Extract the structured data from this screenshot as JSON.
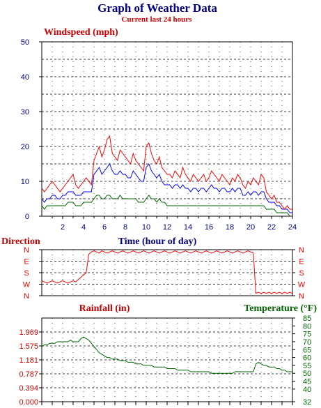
{
  "header": {
    "title": "Graph of Weather Data",
    "subtitle": "Current last 24 hours"
  },
  "colors": {
    "title": "#000080",
    "subtitle": "#cc0000",
    "gust": "#ff0000",
    "average": "#0000ff",
    "low": "#006600",
    "rain_axis": "#cc0000",
    "temperature": "#006600",
    "grid": "#000000",
    "axis_text": "#000080"
  },
  "chart_data": [
    {
      "id": "windspeed",
      "type": "line",
      "title": "Windspeed (mph)",
      "xlabel": "Time (hour of day)",
      "ylabel": "Windspeed (mph)",
      "xlim": [
        0,
        24
      ],
      "ylim": [
        0,
        50
      ],
      "x_ticks": [
        "2",
        "4",
        "6",
        "8",
        "10",
        "12",
        "14",
        "16",
        "18",
        "20",
        "22",
        "24"
      ],
      "y_ticks": [
        "0",
        "10",
        "20",
        "30",
        "40",
        "50"
      ],
      "grid": true,
      "x_step_hours": 0.25,
      "series": [
        {
          "key": "gust",
          "values": [
            8,
            7,
            8,
            9,
            10,
            9,
            8,
            7,
            8,
            9,
            10,
            11,
            12,
            9,
            8,
            9,
            10,
            11,
            10,
            9,
            16,
            18,
            20,
            17,
            19,
            22,
            23,
            18,
            17,
            16,
            19,
            18,
            17,
            16,
            15,
            18,
            16,
            15,
            14,
            13,
            20,
            21,
            18,
            16,
            15,
            17,
            14,
            13,
            12,
            12,
            11,
            13,
            12,
            11,
            14,
            12,
            11,
            10,
            12,
            11,
            10,
            11,
            12,
            10,
            11,
            13,
            12,
            11,
            10,
            12,
            11,
            10,
            9,
            11,
            10,
            12,
            11,
            9,
            8,
            10,
            9,
            11,
            10,
            9,
            12,
            11,
            7,
            6,
            5,
            6,
            4,
            4,
            3,
            2,
            3,
            2,
            2
          ]
        },
        {
          "key": "average",
          "values": [
            5,
            4,
            5,
            5,
            6,
            6,
            5,
            5,
            6,
            6,
            7,
            7,
            7,
            6,
            6,
            6,
            7,
            7,
            7,
            7,
            12,
            13,
            14,
            12,
            13,
            14,
            15,
            13,
            12,
            12,
            13,
            12,
            12,
            11,
            11,
            13,
            12,
            11,
            10,
            10,
            14,
            15,
            13,
            12,
            11,
            12,
            10,
            9,
            9,
            9,
            8,
            9,
            9,
            8,
            9,
            8,
            8,
            7,
            8,
            8,
            7,
            8,
            8,
            7,
            8,
            9,
            8,
            8,
            7,
            8,
            8,
            7,
            7,
            8,
            7,
            8,
            8,
            6,
            6,
            7,
            6,
            7,
            7,
            6,
            7,
            7,
            5,
            4,
            4,
            4,
            3,
            3,
            2,
            2,
            2,
            1,
            1
          ]
        },
        {
          "key": "low",
          "values": [
            3,
            2,
            3,
            3,
            3,
            3,
            3,
            3,
            3,
            3,
            4,
            4,
            4,
            3,
            3,
            3,
            4,
            4,
            4,
            4,
            5,
            6,
            6,
            5,
            5,
            6,
            6,
            5,
            5,
            5,
            6,
            5,
            5,
            5,
            5,
            5,
            5,
            4,
            4,
            4,
            5,
            6,
            5,
            5,
            4,
            5,
            4,
            4,
            3,
            3,
            3,
            3,
            3,
            3,
            3,
            3,
            3,
            3,
            3,
            3,
            3,
            3,
            3,
            3,
            3,
            3,
            3,
            3,
            3,
            3,
            3,
            3,
            3,
            3,
            3,
            3,
            3,
            3,
            3,
            3,
            3,
            3,
            3,
            3,
            3,
            3,
            2,
            2,
            2,
            2,
            1,
            1,
            1,
            1,
            1,
            0,
            0
          ]
        }
      ]
    },
    {
      "id": "direction",
      "type": "line",
      "title": "Direction",
      "xlim": [
        0,
        24
      ],
      "y_ticks": [
        "N",
        "W",
        "S",
        "E",
        "N"
      ],
      "y_index_range": [
        0,
        4
      ],
      "grid": true,
      "x_step_hours": 0.25,
      "series": [
        {
          "key": "direction",
          "values": [
            1.3,
            1.2,
            1.1,
            1.2,
            1.3,
            1.2,
            1.1,
            1.2,
            1.3,
            1.2,
            1.1,
            1.2,
            1.3,
            1.2,
            1.4,
            1.6,
            1.8,
            2.0,
            3.6,
            3.8,
            3.9,
            3.8,
            3.7,
            3.9,
            3.8,
            3.7,
            3.8,
            3.9,
            3.8,
            3.7,
            3.8,
            3.9,
            3.8,
            3.7,
            3.8,
            3.9,
            3.8,
            3.7,
            3.8,
            3.9,
            3.8,
            3.7,
            3.8,
            3.9,
            3.8,
            3.7,
            3.8,
            3.9,
            3.8,
            3.7,
            3.8,
            3.9,
            3.8,
            3.7,
            3.8,
            3.9,
            3.8,
            3.7,
            3.8,
            3.9,
            3.8,
            3.7,
            3.8,
            3.9,
            3.8,
            3.7,
            3.8,
            3.9,
            3.8,
            3.7,
            3.8,
            3.9,
            3.8,
            3.7,
            3.8,
            3.9,
            3.8,
            3.7,
            3.8,
            3.9,
            3.8,
            3.7,
            0.2,
            0.3,
            0.2,
            0.3,
            0.2,
            0.3,
            0.2,
            0.3,
            0.2,
            0.3,
            0.2,
            0.3,
            0.2,
            0.3,
            0.2
          ]
        }
      ]
    },
    {
      "id": "rain-temperature",
      "type": "line",
      "title": "Rainfall (in)",
      "y2label": "Temperature (°F)",
      "xlim": [
        0,
        24
      ],
      "ylim": [
        0,
        2.362
      ],
      "y_ticks": [
        "0.000",
        "0.394",
        "0.787",
        "1.181",
        "1.575",
        "1.969"
      ],
      "y2lim": [
        32,
        85
      ],
      "y2_ticks": [
        "32",
        "40",
        "45",
        "50",
        "55",
        "60",
        "65",
        "70",
        "75",
        "80",
        "85"
      ],
      "grid": true,
      "x_step_hours": 0.25,
      "series": [
        {
          "key": "temperature",
          "values": [
            67,
            68,
            68,
            69,
            69,
            69,
            70,
            70,
            70,
            70,
            70,
            71,
            70,
            70,
            70,
            72,
            73,
            72,
            71,
            69,
            67,
            65,
            63,
            62,
            61,
            60,
            60,
            59,
            59,
            59,
            58,
            58,
            58,
            57,
            57,
            57,
            56,
            56,
            56,
            55,
            55,
            55,
            55,
            54,
            54,
            54,
            54,
            54,
            53,
            53,
            53,
            53,
            52,
            52,
            52,
            52,
            52,
            51,
            51,
            51,
            51,
            51,
            51,
            51,
            51,
            50,
            50,
            50,
            50,
            50,
            50,
            50,
            50,
            50,
            51,
            51,
            51,
            51,
            51,
            51,
            51,
            51,
            56,
            57,
            56,
            55,
            55,
            54,
            54,
            54,
            53,
            53,
            52,
            52,
            51,
            51,
            51
          ]
        }
      ]
    }
  ]
}
